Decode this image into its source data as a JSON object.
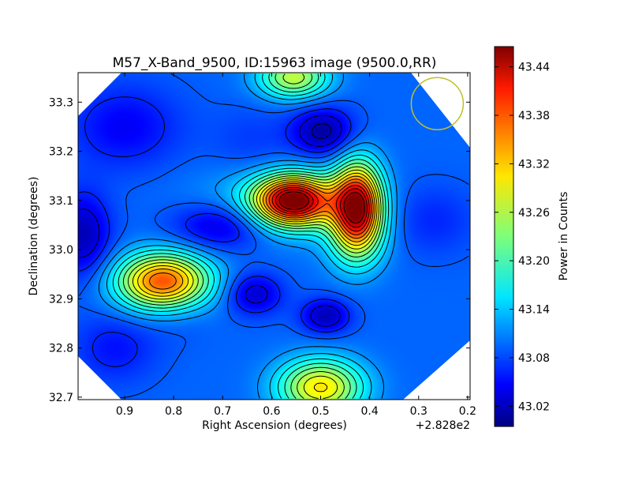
{
  "chart_data": {
    "type": "heatmap",
    "title": "M57_X-Band_9500, ID:15963 image (9500.0,RR)",
    "xlabel": "Right Ascension (degrees)",
    "ylabel": "Declination (degrees)",
    "x_offset_label": "+2.828e2",
    "xlim": [
      0.995,
      0.195
    ],
    "ylim": [
      32.695,
      33.36
    ],
    "x_ticks": [
      0.9,
      0.8,
      0.7,
      0.6,
      0.5,
      0.4,
      0.3,
      0.2
    ],
    "x_tick_labels": [
      "0.9",
      "0.8",
      "0.7",
      "0.6",
      "0.5",
      "0.4",
      "0.3",
      "0.2"
    ],
    "y_ticks": [
      32.7,
      32.8,
      32.9,
      33.0,
      33.1,
      33.2,
      33.3
    ],
    "y_tick_labels": [
      "32.7",
      "32.8",
      "32.9",
      "33.0",
      "33.1",
      "33.2",
      "33.3"
    ],
    "colorbar": {
      "label": "Power in Counts",
      "range": [
        42.995,
        43.465
      ],
      "ticks": [
        43.02,
        43.08,
        43.14,
        43.2,
        43.26,
        43.32,
        43.38,
        43.44
      ],
      "tick_labels": [
        "43.02",
        "43.08",
        "43.14",
        "43.20",
        "43.26",
        "43.32",
        "43.38",
        "43.44"
      ],
      "colormap": "jet"
    },
    "base_level": 43.1,
    "features": [
      {
        "ra": 0.555,
        "dec": 33.1,
        "value": 43.44,
        "sx": 0.055,
        "sy": 0.035
      },
      {
        "ra": 0.595,
        "dec": 33.09,
        "value": 43.16,
        "sx": 0.11,
        "sy": 0.05
      },
      {
        "ra": 0.425,
        "dec": 33.09,
        "value": 43.43,
        "sx": 0.035,
        "sy": 0.06
      },
      {
        "ra": 0.43,
        "dec": 33.02,
        "value": 43.16,
        "sx": 0.045,
        "sy": 0.05
      },
      {
        "ra": 0.82,
        "dec": 32.935,
        "value": 43.38,
        "sx": 0.065,
        "sy": 0.04
      },
      {
        "ra": 0.79,
        "dec": 32.895,
        "value": 43.08,
        "sx": 0.05,
        "sy": 0.05
      },
      {
        "ra": 0.5,
        "dec": 32.72,
        "value": 43.3,
        "sx": 0.06,
        "sy": 0.04
      },
      {
        "ra": 0.555,
        "dec": 33.35,
        "value": 43.26,
        "sx": 0.05,
        "sy": 0.03
      },
      {
        "ra": 0.24,
        "dec": 32.94,
        "value": 43.1,
        "sx": 0.05,
        "sy": 0.06
      },
      {
        "ra": 0.64,
        "dec": 33.22,
        "value": 43.08,
        "sx": 0.06,
        "sy": 0.05
      },
      {
        "ra": 0.27,
        "dec": 33.06,
        "value": 43.07,
        "sx": 0.06,
        "sy": 0.05
      },
      {
        "ra": 0.495,
        "dec": 33.24,
        "value": 43.01,
        "sx": 0.045,
        "sy": 0.035
      },
      {
        "ra": 0.7,
        "dec": 33.05,
        "value": 43.02,
        "sx": 0.07,
        "sy": 0.035
      },
      {
        "ra": 0.985,
        "dec": 33.03,
        "value": 43.02,
        "sx": 0.04,
        "sy": 0.06
      },
      {
        "ra": 0.635,
        "dec": 32.91,
        "value": 43.03,
        "sx": 0.04,
        "sy": 0.03
      },
      {
        "ra": 0.49,
        "dec": 32.865,
        "value": 43.02,
        "sx": 0.035,
        "sy": 0.025
      },
      {
        "ra": 0.9,
        "dec": 33.25,
        "value": 43.05,
        "sx": 0.08,
        "sy": 0.06
      },
      {
        "ra": 0.92,
        "dec": 32.8,
        "value": 43.06,
        "sx": 0.06,
        "sy": 0.05
      }
    ],
    "beam": {
      "ra": 0.262,
      "dec": 33.297,
      "color": "#bfbf2a"
    }
  }
}
